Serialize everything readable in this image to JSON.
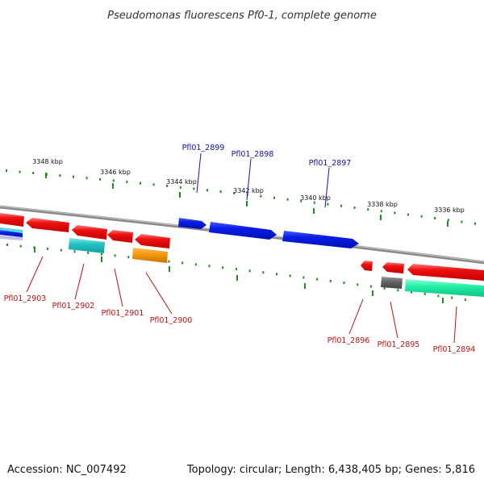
{
  "title": "Pseudomonas fluorescens Pf0-1, complete genome",
  "footer": {
    "accession": "Accession: NC_007492",
    "summary": "Topology: circular; Length: 6,438,405 bp; Genes: 5,816"
  },
  "colors": {
    "backbone": "#8a8a8a",
    "tick": "#1f8f1f",
    "label_forward": "#1010aa",
    "label_reverse": "#c01010",
    "blue": "#0a1ee8",
    "red": "#ee1111",
    "cyan": "#22c4c4",
    "orange": "#f59a10",
    "gray": "#666666",
    "mint": "#22f0a8"
  },
  "scale": {
    "ticks": [
      {
        "label": "3348 kbp"
      },
      {
        "label": "3346 kbp"
      },
      {
        "label": "3344 kbp"
      },
      {
        "label": "3342 kbp"
      },
      {
        "label": "3340 kbp"
      },
      {
        "label": "3338 kbp"
      },
      {
        "label": "3336 kbp"
      }
    ]
  },
  "labels": {
    "forward": [
      {
        "text": "Pfl01_2899"
      },
      {
        "text": "Pfl01_2898"
      },
      {
        "text": "Pfl01_2897"
      }
    ],
    "reverse": [
      {
        "text": "Pfl01_2903"
      },
      {
        "text": "Pfl01_2902"
      },
      {
        "text": "Pfl01_2901"
      },
      {
        "text": "Pfl01_2900"
      },
      {
        "text": "Pfl01_2896"
      },
      {
        "text": "Pfl01_2895"
      },
      {
        "text": "Pfl01_2894"
      }
    ]
  }
}
